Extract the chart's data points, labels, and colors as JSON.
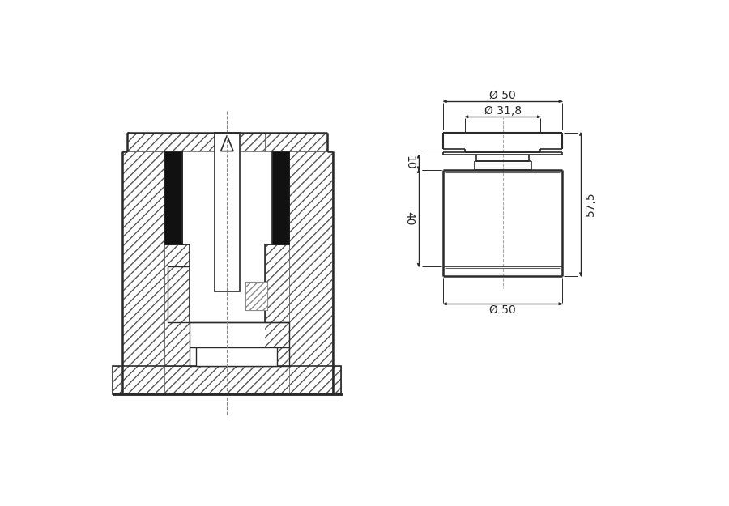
{
  "bg_color": "#ffffff",
  "line_color": "#2a2a2a",
  "dim_color": "#2a2a2a",
  "hatch_color": "#2a2a2a",
  "annotations": {
    "dim50_top_label": "Ø 50",
    "dim318_label": "Ø 31,8",
    "dim50_bot_label": "Ø 50",
    "dim10_label": "10",
    "dim40_label": "40",
    "dim575_label": "57,5"
  }
}
